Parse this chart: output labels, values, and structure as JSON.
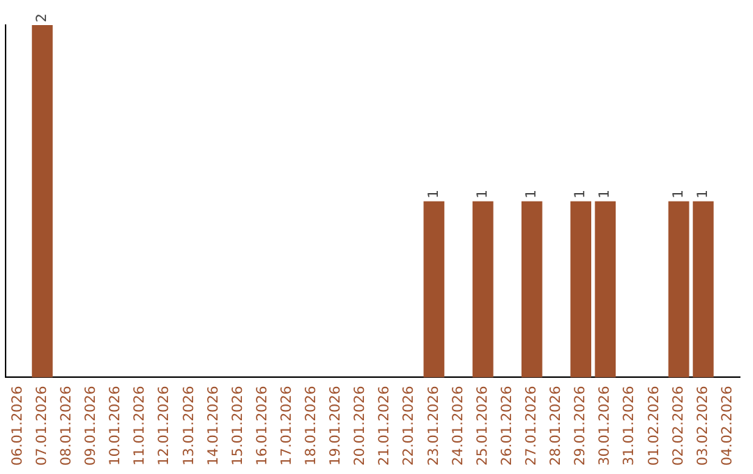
{
  "chart_data": {
    "type": "bar",
    "categories": [
      "06.01.2026",
      "07.01.2026",
      "08.01.2026",
      "09.01.2026",
      "10.01.2026",
      "11.01.2026",
      "12.01.2026",
      "13.01.2026",
      "14.01.2026",
      "15.01.2026",
      "16.01.2026",
      "17.01.2026",
      "18.01.2026",
      "19.01.2026",
      "20.01.2026",
      "21.01.2026",
      "22.01.2026",
      "23.01.2026",
      "24.01.2026",
      "25.01.2026",
      "26.01.2026",
      "27.01.2026",
      "28.01.2026",
      "29.01.2026",
      "30.01.2026",
      "31.01.2026",
      "01.02.2026",
      "02.02.2026",
      "03.02.2026",
      "04.02.2026"
    ],
    "values": [
      0,
      2,
      0,
      0,
      0,
      0,
      0,
      0,
      0,
      0,
      0,
      0,
      0,
      0,
      0,
      0,
      0,
      1,
      0,
      1,
      0,
      1,
      0,
      1,
      1,
      0,
      0,
      1,
      1,
      0
    ],
    "value_labels": [
      null,
      "2",
      null,
      null,
      null,
      null,
      null,
      null,
      null,
      null,
      null,
      null,
      null,
      null,
      null,
      null,
      null,
      "1",
      null,
      "1",
      null,
      "1",
      null,
      "1",
      "1",
      null,
      null,
      "1",
      "1",
      null
    ],
    "color": "#a0522d",
    "ylim": [
      0,
      2
    ],
    "grid": false,
    "legend": false,
    "tick_labels": "x"
  }
}
